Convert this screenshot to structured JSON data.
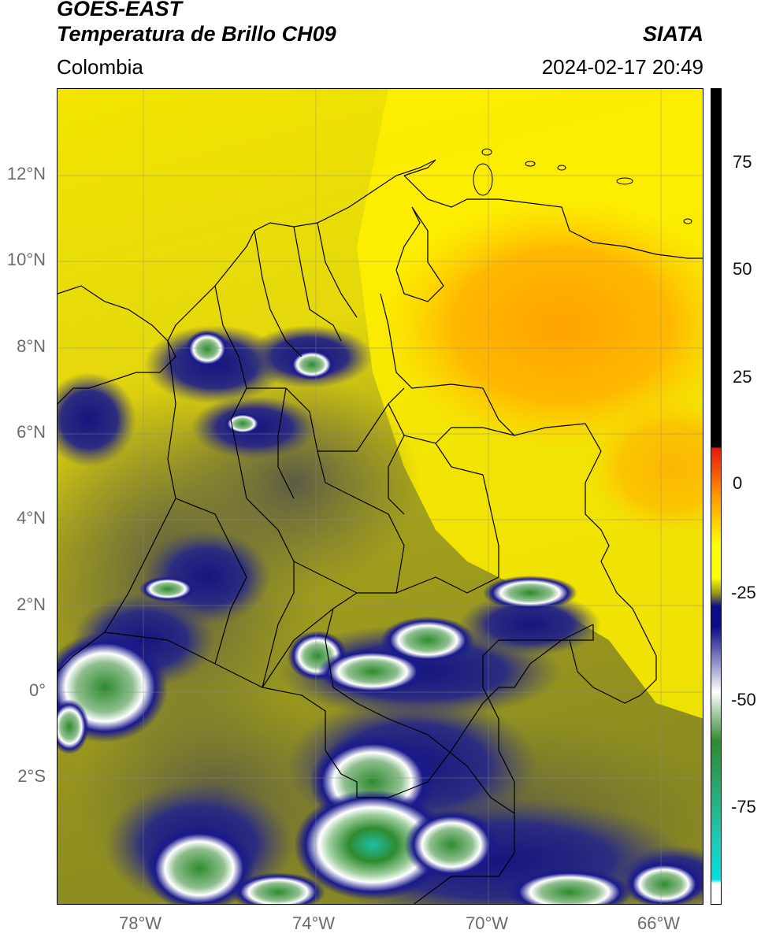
{
  "header": {
    "title_line1": "GOES-EAST",
    "title_line2": "Temperatura de Brillo CH09",
    "region": "Colombia",
    "agency": "SIATA",
    "datetime": "2024-02-17 20:49"
  },
  "map": {
    "lat_labels": [
      "12°N",
      "10°N",
      "8°N",
      "6°N",
      "4°N",
      "2°N",
      "0°",
      "2°S"
    ],
    "lon_labels": [
      "78°W",
      "74°W",
      "70°W",
      "66°W"
    ]
  },
  "colorbar": {
    "tick_labels": [
      "75",
      "50",
      "25",
      "0",
      "-25",
      "-50",
      "-75"
    ],
    "colors": {
      "black": "#000000",
      "red": "#e8140e",
      "orange": "#ff9a00",
      "yellow": "#ffff00",
      "olive": "#8f8f1f",
      "navy": "#0c0c86",
      "white": "#ffffff",
      "green": "#2f8a2f",
      "teal": "#1fc9b8",
      "cyan": "#00e0e0"
    }
  }
}
